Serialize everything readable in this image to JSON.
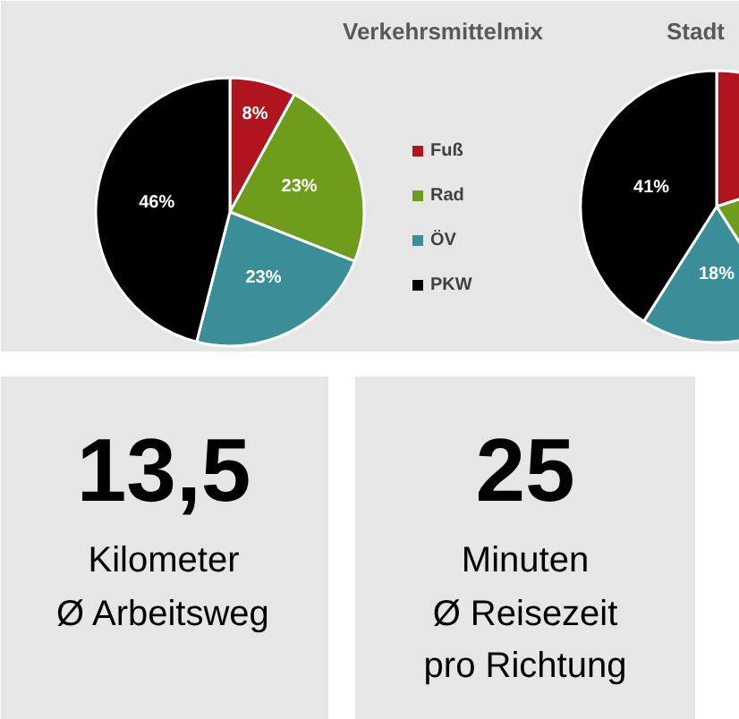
{
  "chart_data": [
    {
      "type": "pie",
      "title": "Verkehrsmittelmix",
      "categories": [
        "Fuß",
        "Rad",
        "ÖV",
        "PKW"
      ],
      "values": [
        8,
        23,
        23,
        46
      ],
      "colors": [
        "#b0151f",
        "#6e9d1c",
        "#3a8e98",
        "#000000"
      ],
      "value_labels": [
        "8%",
        "23%",
        "23%",
        "46%"
      ],
      "legend": "right"
    },
    {
      "type": "pie",
      "title": "Stadt",
      "values": [
        20,
        21,
        18,
        41
      ],
      "colors": [
        "#b0151f",
        "#6e9d1c",
        "#3a8e98",
        "#000000"
      ],
      "value_labels": [
        null,
        null,
        "18%",
        "41%"
      ]
    },
    {
      "type": "other",
      "annotations": [
        "13,5",
        "Kilometer",
        "Ø Arbeitsweg",
        "25",
        "Minuten",
        "Ø Reisezeit",
        "pro Richtung"
      ]
    }
  ]
}
